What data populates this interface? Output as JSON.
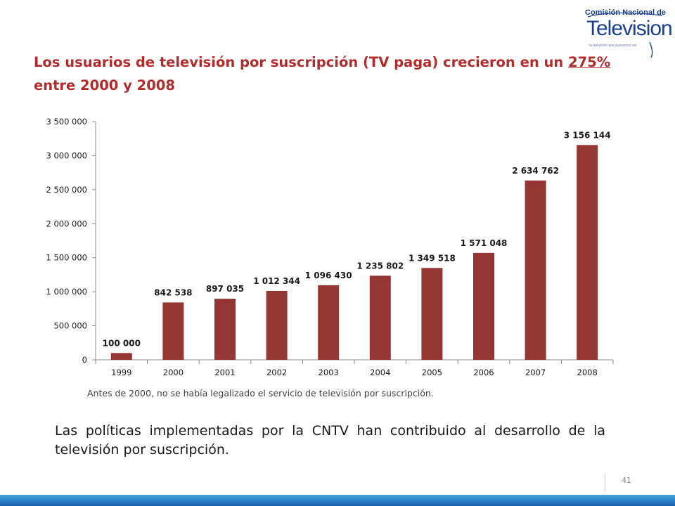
{
  "logo": {
    "top": "Comisión Nacional de",
    "main": "Television",
    "tagline": "la televisión que queremos ver"
  },
  "title": {
    "before": "Los usuarios de televisión por suscripción (TV paga) crecieron en un ",
    "highlight": "275%",
    "after": " entre 2000 y 2008"
  },
  "chart_data": {
    "type": "bar",
    "categories": [
      "1999",
      "2000",
      "2001",
      "2002",
      "2003",
      "2004",
      "2005",
      "2006",
      "2007",
      "2008"
    ],
    "values": [
      100000,
      842538,
      897035,
      1012344,
      1096430,
      1235802,
      1349518,
      1571048,
      2634762,
      3156144
    ],
    "data_labels": [
      "100 000",
      "842 538",
      "897 035",
      "1 012 344",
      "1 096 430",
      "1 235 802",
      "1 349 518",
      "1 571 048",
      "2 634 762",
      "3 156 144"
    ],
    "ylim": [
      0,
      3500000
    ],
    "yticks": [
      0,
      500000,
      1000000,
      1500000,
      2000000,
      2500000,
      3000000,
      3500000
    ],
    "ytick_labels": [
      "0",
      "500 000",
      "1 000 000",
      "1 500 000",
      "2 000 000",
      "2 500 000",
      "3 000 000",
      "3 500 000"
    ],
    "bar_color": "#943634",
    "grid": false,
    "legend": "none"
  },
  "note": "Antes de 2000, no se había legalizado el servicio de televisión por suscripción.",
  "body_text": "Las políticas implementadas por la CNTV han contribuido al desarrollo de la televisión por suscripción.",
  "page_number": "41"
}
